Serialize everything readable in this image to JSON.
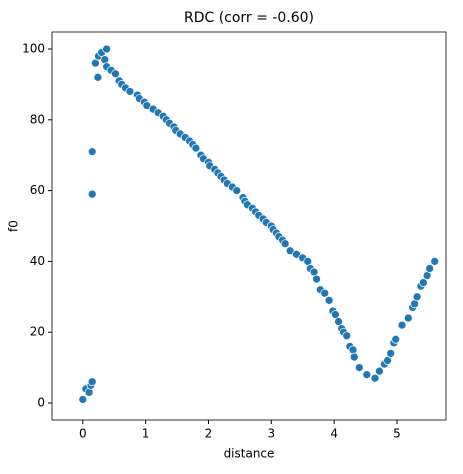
{
  "chart_data": {
    "type": "scatter",
    "title": "RDC (corr = -0.60)",
    "x_label": "distance",
    "y_label": "f0",
    "color": "#1f77b4",
    "x": [
      0.0,
      0.05,
      0.1,
      0.13,
      0.15,
      0.15,
      0.15,
      0.2,
      0.24,
      0.25,
      0.3,
      0.35,
      0.38,
      0.38,
      0.45,
      0.52,
      0.58,
      0.62,
      0.68,
      0.75,
      0.87,
      0.9,
      0.98,
      1.02,
      1.12,
      1.2,
      1.28,
      1.33,
      1.38,
      1.45,
      1.48,
      1.55,
      1.63,
      1.7,
      1.75,
      1.8,
      1.88,
      1.92,
      2.0,
      2.02,
      2.1,
      2.15,
      2.2,
      2.25,
      2.3,
      2.38,
      2.45,
      2.55,
      2.58,
      2.62,
      2.7,
      2.75,
      2.8,
      2.87,
      2.92,
      3.0,
      3.03,
      3.08,
      3.12,
      3.18,
      3.22,
      3.3,
      3.4,
      3.5,
      3.58,
      3.62,
      3.68,
      3.72,
      3.78,
      3.85,
      3.92,
      3.98,
      4.02,
      4.07,
      4.12,
      4.15,
      4.2,
      4.25,
      4.3,
      4.32,
      4.4,
      4.52,
      4.65,
      4.72,
      4.8,
      4.85,
      4.9,
      4.95,
      4.98,
      5.08,
      5.18,
      5.25,
      5.28,
      5.32,
      5.38,
      5.42,
      5.48,
      5.52,
      5.6
    ],
    "values": [
      1,
      4,
      3,
      5,
      6,
      59,
      71,
      96,
      92,
      98,
      99,
      97,
      100,
      95,
      94,
      93,
      91,
      90,
      89,
      88,
      87,
      86,
      85,
      84,
      83,
      82,
      81,
      80,
      79,
      78,
      77,
      76,
      75,
      74,
      73,
      72,
      70,
      69,
      68,
      67,
      66,
      65,
      64,
      63,
      62,
      61,
      60,
      58,
      57,
      56,
      55,
      54,
      53,
      52,
      51,
      50,
      49,
      48,
      47,
      46,
      45,
      43,
      42,
      41,
      40,
      38,
      37,
      35,
      32,
      31,
      29,
      26,
      25,
      23,
      21,
      20,
      19,
      16,
      15,
      13,
      10,
      8,
      7,
      9,
      11,
      12,
      14,
      17,
      18,
      22,
      24,
      27,
      28,
      30,
      33,
      34,
      36,
      38,
      40
    ],
    "xlim": [
      -0.49,
      5.78
    ],
    "ylim": [
      -4.8,
      104.8
    ],
    "xticks": [
      0,
      1,
      2,
      3,
      4,
      5
    ],
    "yticks": [
      0,
      20,
      40,
      60,
      80,
      100
    ]
  }
}
